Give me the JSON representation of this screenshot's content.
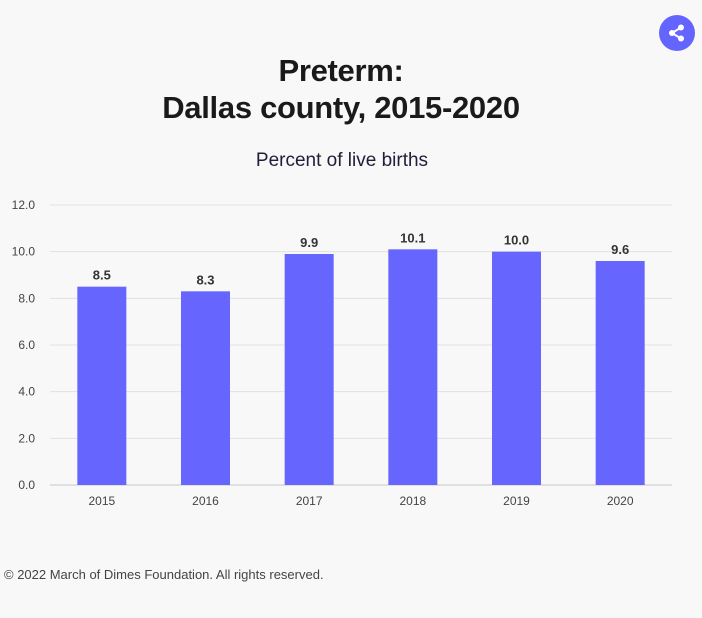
{
  "title_lines": [
    "Preterm:",
    "Dallas county, 2015-2020"
  ],
  "subtitle": "Percent of live births",
  "footer": "© 2022 March of Dimes Foundation. All rights reserved.",
  "share_icon": "share-icon",
  "colors": {
    "bar": "#6666ff",
    "accent": "#6464ff",
    "grid": "#e2e2e2"
  },
  "chart_data": {
    "type": "bar",
    "title": "Preterm: Dallas county, 2015-2020",
    "ylabel": "Percent of live births",
    "categories": [
      "2015",
      "2016",
      "2017",
      "2018",
      "2019",
      "2020"
    ],
    "values": [
      8.5,
      8.3,
      9.9,
      10.1,
      10.0,
      9.6
    ],
    "value_labels": [
      "8.5",
      "8.3",
      "9.9",
      "10.1",
      "10.0",
      "9.6"
    ],
    "ylim": [
      0,
      12
    ],
    "yticks": [
      "0.0",
      "2.0",
      "4.0",
      "6.0",
      "8.0",
      "10.0",
      "12.0"
    ],
    "grid": true,
    "legend": "none"
  }
}
